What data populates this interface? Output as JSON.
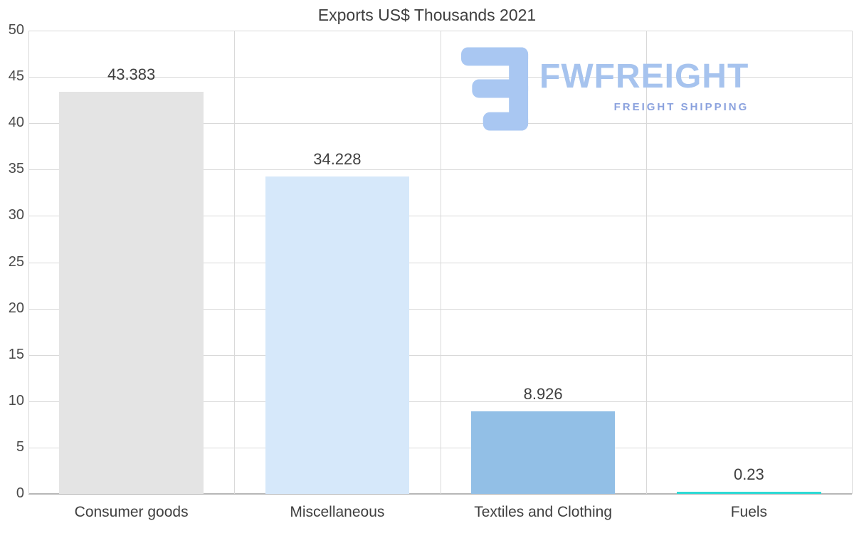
{
  "chart_data": {
    "type": "bar",
    "title": "Exports US$ Thousands 2021",
    "categories": [
      "Consumer goods",
      "Miscellaneous",
      "Textiles and Clothing",
      "Fuels"
    ],
    "values": [
      43.383,
      34.228,
      8.926,
      0.23
    ],
    "value_labels": [
      "43.383",
      "34.228",
      "8.926",
      "0.23"
    ],
    "bar_colors": [
      "#e4e4e4",
      "#d6e8fa",
      "#92bfe6",
      "#2ed9d4"
    ],
    "xlabel": "",
    "ylabel": "",
    "ylim": [
      0,
      50
    ],
    "yticks": [
      0,
      5,
      10,
      15,
      20,
      25,
      30,
      35,
      40,
      45,
      50
    ],
    "grid": "on",
    "legend": "none"
  },
  "logo": {
    "name": "FWFREIGHT",
    "tagline": "FREIGHT SHIPPING",
    "wordmark_color": "#a6c3ee",
    "tagline_color": "#8ba2de",
    "icon_color": "#a9c7f2"
  }
}
